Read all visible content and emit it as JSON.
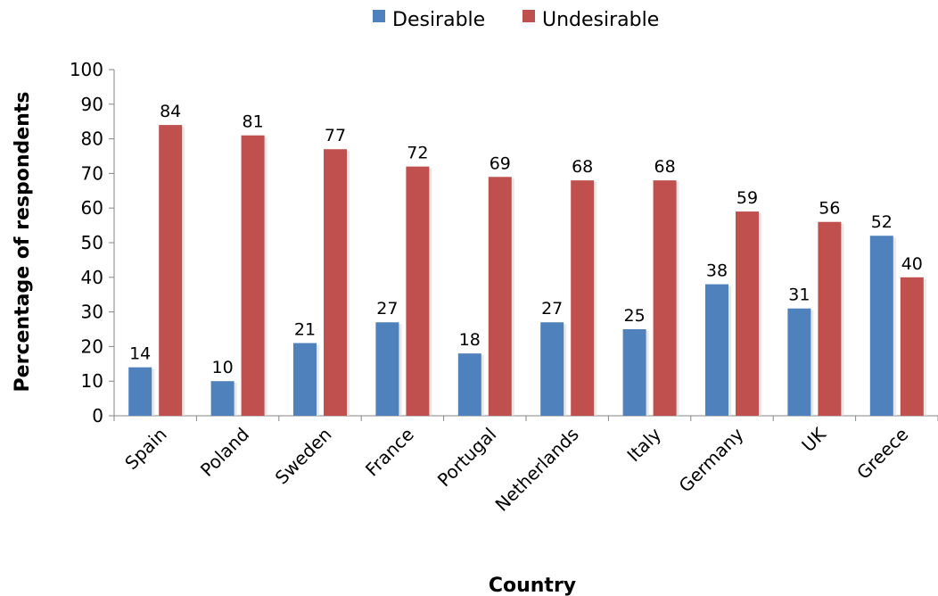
{
  "chart_data": {
    "type": "bar",
    "title": "",
    "xlabel": "Country",
    "ylabel": "Percentage of respondents",
    "ylim": [
      0,
      100
    ],
    "yticks": [
      0,
      10,
      20,
      30,
      40,
      50,
      60,
      70,
      80,
      90,
      100
    ],
    "grid": false,
    "legend_position": "top-center",
    "categories": [
      "Spain",
      "Poland",
      "Sweden",
      "France",
      "Portugal",
      "Netherlands",
      "Italy",
      "Germany",
      "UK",
      "Greece"
    ],
    "series": [
      {
        "name": "Desirable",
        "color": "#4f81bd",
        "values": [
          14,
          10,
          21,
          27,
          18,
          27,
          25,
          38,
          31,
          52
        ]
      },
      {
        "name": "Undesirable",
        "color": "#c0504d",
        "values": [
          84,
          81,
          77,
          72,
          69,
          68,
          68,
          59,
          56,
          40
        ]
      }
    ]
  }
}
